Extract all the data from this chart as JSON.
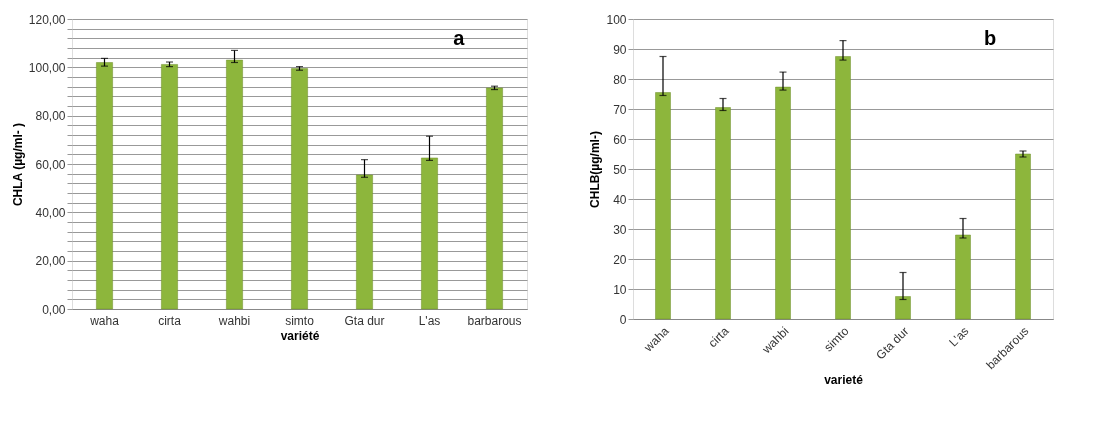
{
  "chart_data": [
    {
      "type": "bar",
      "ylabel": "CHLA (µg/ml- )",
      "xlabel": "variété",
      "annotations": [
        "a"
      ],
      "categories": [
        "waha",
        "cirta",
        "wahbi",
        "simto",
        "Gta dur",
        "L'as",
        "barbarous"
      ],
      "values": [
        102,
        101.2,
        103,
        99.5,
        55.5,
        62.5,
        91.5
      ],
      "errors": [
        [
          100.5,
          103.7
        ],
        [
          100.3,
          102.2
        ],
        [
          102,
          107
        ],
        [
          98.8,
          100.3
        ],
        [
          54.5,
          61.8
        ],
        [
          61.5,
          71.5
        ],
        [
          90.8,
          92.2
        ]
      ],
      "color": "#8db63c",
      "ylim": [
        0,
        120
      ],
      "yticks": [
        {
          "value": 0,
          "label": "0,00"
        },
        {
          "value": 4,
          "label": null
        },
        {
          "value": 8,
          "label": null
        },
        {
          "value": 12,
          "label": null
        },
        {
          "value": 16,
          "label": null
        },
        {
          "value": 20,
          "label": "20,00"
        },
        {
          "value": 24,
          "label": null
        },
        {
          "value": 28,
          "label": null
        },
        {
          "value": 32,
          "label": null
        },
        {
          "value": 36,
          "label": null
        },
        {
          "value": 40,
          "label": "40,00"
        },
        {
          "value": 44,
          "label": null
        },
        {
          "value": 48,
          "label": null
        },
        {
          "value": 52,
          "label": null
        },
        {
          "value": 56,
          "label": null
        },
        {
          "value": 60,
          "label": "60,00"
        },
        {
          "value": 64,
          "label": null
        },
        {
          "value": 68,
          "label": null
        },
        {
          "value": 72,
          "label": null
        },
        {
          "value": 76,
          "label": null
        },
        {
          "value": 80,
          "label": "80,00"
        },
        {
          "value": 84,
          "label": null
        },
        {
          "value": 88,
          "label": null
        },
        {
          "value": 92,
          "label": null
        },
        {
          "value": 96,
          "label": null
        },
        {
          "value": 100,
          "label": "100,00"
        },
        {
          "value": 104,
          "label": null
        },
        {
          "value": 108,
          "label": null
        },
        {
          "value": 112,
          "label": null
        },
        {
          "value": 116,
          "label": null
        },
        {
          "value": 120,
          "label": "120,00"
        }
      ],
      "grid": "y"
    },
    {
      "type": "bar",
      "ylabel": "CHLB(µg/ml-)",
      "xlabel": "varieté",
      "annotations": [
        "b"
      ],
      "categories": [
        "waha",
        "cirta",
        "wahbi",
        "simto",
        "Gta dur",
        "L'as",
        "barbarous"
      ],
      "values": [
        75.5,
        70.5,
        77.3,
        87.5,
        7.5,
        28,
        55
      ],
      "errors": [
        [
          74.5,
          87.5
        ],
        [
          69.5,
          73.5
        ],
        [
          76.3,
          82.3
        ],
        [
          86.3,
          92.8
        ],
        [
          6.5,
          15.5
        ],
        [
          27,
          33.5
        ],
        [
          54,
          56
        ]
      ],
      "color": "#8db63c",
      "ylim": [
        0,
        100
      ],
      "yticks": [
        0,
        10,
        20,
        30,
        40,
        50,
        60,
        70,
        80,
        90,
        100
      ],
      "grid": "y"
    }
  ]
}
